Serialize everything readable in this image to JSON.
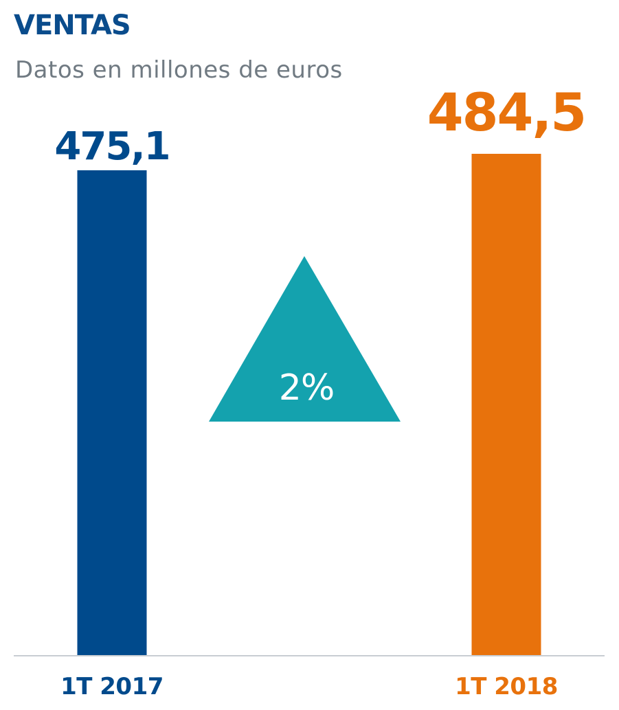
{
  "chart_data": {
    "type": "bar",
    "title": "VENTAS",
    "subtitle": "Datos en millones de euros",
    "categories": [
      "1T 2017",
      "1T 2018"
    ],
    "values": [
      475.1,
      484.5
    ],
    "value_labels": [
      "475,1",
      "484,5"
    ],
    "bar_colors": [
      "#004a8c",
      "#e8720c"
    ],
    "title_color": "#0a4c8c",
    "subtitle_color": "#707a82",
    "change": {
      "label": "2%",
      "direction": "up",
      "shape": "triangle-up",
      "color": "#14a2ae",
      "text_color": "#ffffff"
    },
    "baseline_color": "#c8cdd2"
  }
}
